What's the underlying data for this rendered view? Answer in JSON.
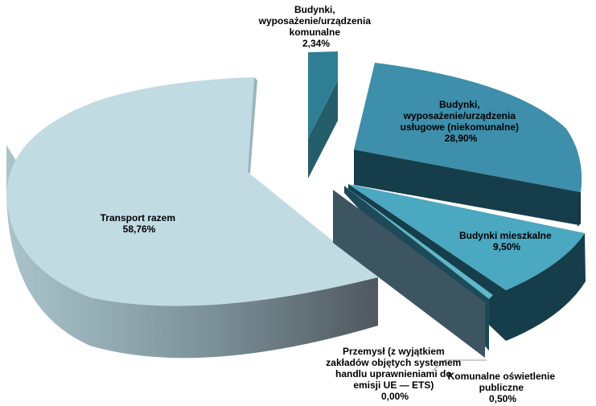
{
  "chart_data": {
    "type": "pie",
    "exploded": true,
    "three_d": true,
    "slices": [
      {
        "label_lines": [
          "Budynki,",
          "wyposażenie/urządzenia",
          "komunalne"
        ],
        "value": 2.34,
        "value_text": "2,34%",
        "color": "#2f7f94"
      },
      {
        "label_lines": [
          "Budynki,",
          "wyposażenie/urządzenia",
          "usługowe (niekomunalne)"
        ],
        "value": 28.9,
        "value_text": "28,90%",
        "color": "#3d8fab"
      },
      {
        "label_lines": [
          "Budynki  mieszkalne"
        ],
        "value": 9.5,
        "value_text": "9,50%",
        "color": "#4aa8c0"
      },
      {
        "label_lines": [
          "Komunalne  oświetlenie",
          "publiczne"
        ],
        "value": 0.5,
        "value_text": "0,50%",
        "color": "#5fb7cb"
      },
      {
        "label_lines": [
          "Przemysł (z wyjątkiem",
          "zakładów objętych systemem",
          "handlu  uprawnieniami do",
          "emisji UE  — ETS)"
        ],
        "value": 0.0,
        "value_text": "0,00%",
        "color": "#3c5561"
      },
      {
        "label_lines": [
          "Transport razem"
        ],
        "value": 58.76,
        "value_text": "58,76%",
        "color": "#c0dbe3"
      }
    ]
  }
}
